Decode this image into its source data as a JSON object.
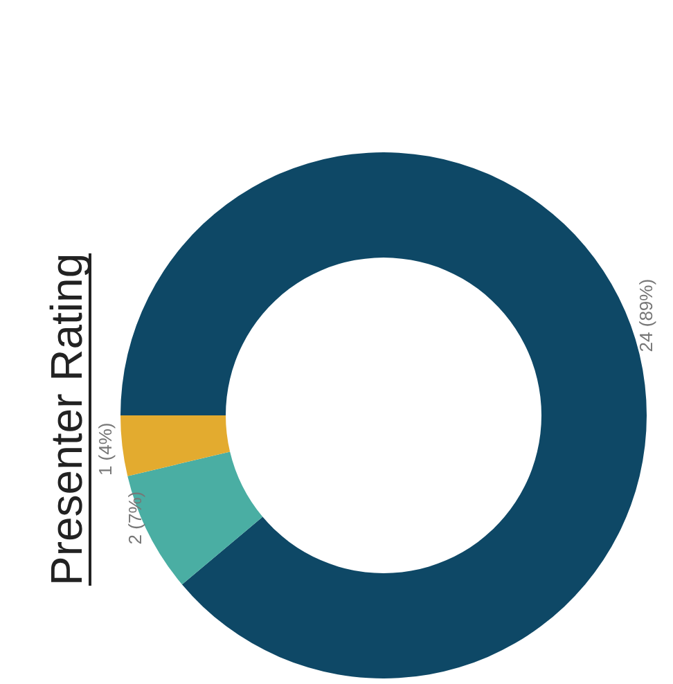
{
  "chart_data": {
    "type": "donut",
    "title": "Presenter Rating",
    "categories": [
      null,
      null,
      null
    ],
    "values": [
      24,
      2,
      1
    ],
    "colors": [
      "#0e4866",
      "#4aaea3",
      "#e3ab2f"
    ],
    "value_labels": [
      "24 (89%)",
      "2 (7%)",
      "1 (4%)"
    ],
    "legend": false
  }
}
